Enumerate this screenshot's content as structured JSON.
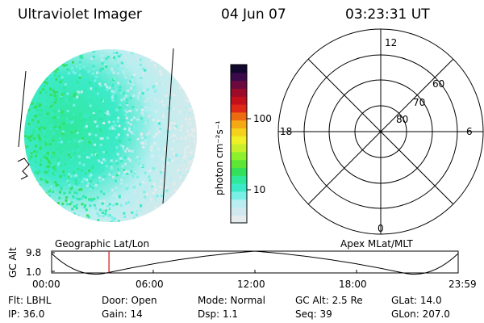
{
  "header": {
    "instrument": "Ultraviolet Imager",
    "date": "04 Jun 07",
    "time": "03:23:31 UT"
  },
  "colorbar": {
    "label": "photon cm⁻²s⁻¹",
    "tick_100": "100",
    "tick_10": "10",
    "colors": [
      "#e6ecec",
      "#cfe9ee",
      "#b8eef0",
      "#78f0e6",
      "#3ceac8",
      "#2fe89a",
      "#34e05a",
      "#5ee636",
      "#8cf02c",
      "#c8f02a",
      "#f0f028",
      "#f4d21c",
      "#f4a814",
      "#ec6a10",
      "#e02818",
      "#c4101c",
      "#9c0c28",
      "#6c0a40",
      "#3a0a4a",
      "#12082e"
    ]
  },
  "polar_plot": {
    "label_top": "12",
    "label_bottom": "0",
    "label_left": "18",
    "label_right": "6",
    "ring_60": "60",
    "ring_70": "70",
    "ring_80": "80"
  },
  "orbit_panel": {
    "left_title": "Geographic Lat/Lon",
    "right_title": "Apex MLat/MLT",
    "y_axis_label": "GC Alt",
    "y_tick_top": "9.8",
    "y_tick_bottom": "1.0",
    "x_ticks": [
      "00:00",
      "06:00",
      "12:00",
      "18:00",
      "23:59"
    ],
    "current_time_fraction": 0.141,
    "marker_color": "#d01010"
  },
  "info": {
    "flt": "Flt: LBHL",
    "ip": "IP: 36.0",
    "door": "Door: Open",
    "gain": "Gain: 14",
    "mode": "Mode: Normal",
    "dsp": "Dsp:    1.1",
    "gc_alt": "GC Alt: 2.5 Re",
    "seq": "Seq: 39",
    "glat": "GLat:  14.0",
    "glon": "GLon: 207.0"
  }
}
